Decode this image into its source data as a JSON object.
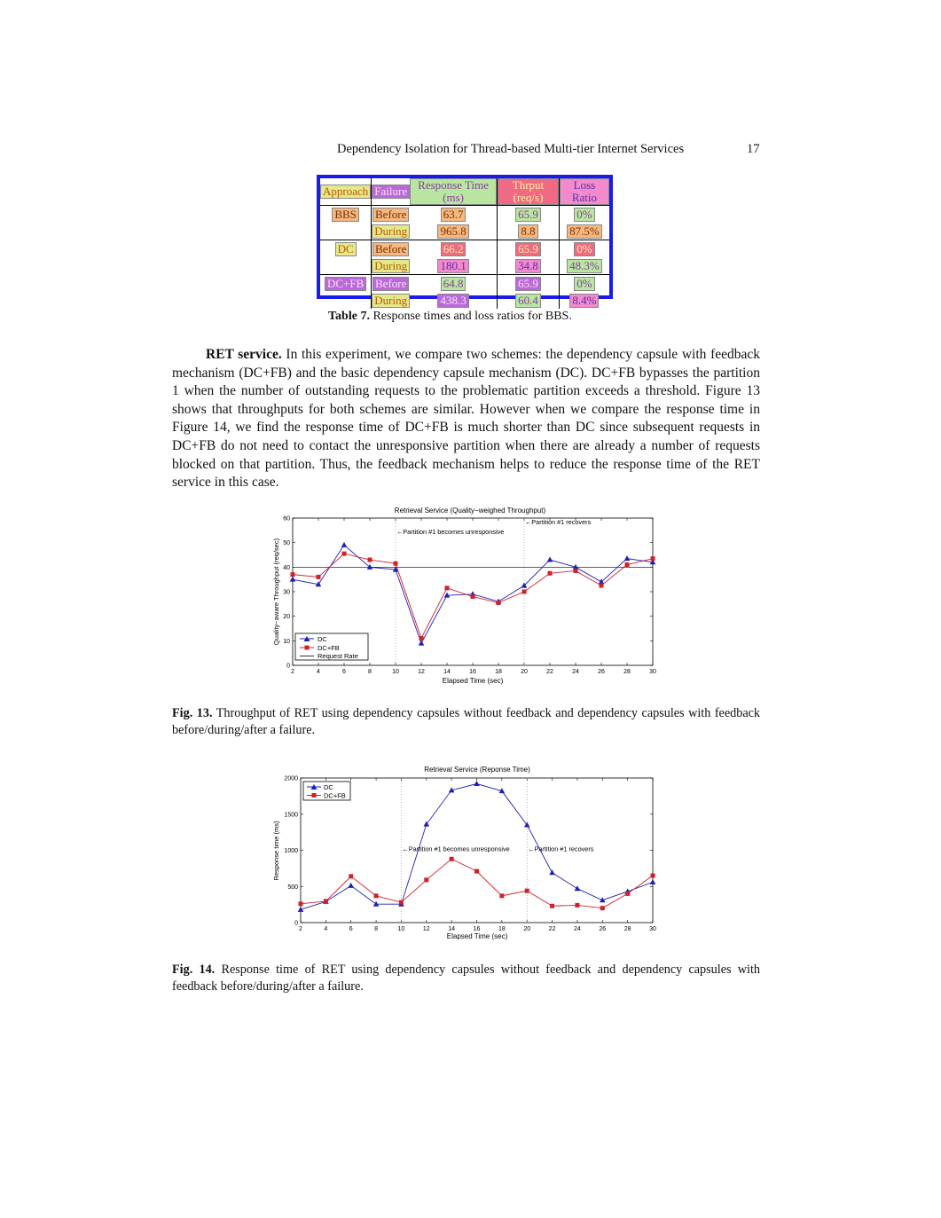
{
  "running_header": "Dependency Isolation for Thread-based Multi-tier Internet Services",
  "page_number": "17",
  "table7": {
    "headers": [
      "Approach",
      "Failure",
      "Response Time (ms)",
      "Thrput (req/s)",
      "Loss Ratio"
    ],
    "rows": [
      [
        "BBS",
        "Before",
        "63.7",
        "65.9",
        "0%"
      ],
      [
        "",
        "During",
        "965.8",
        "8.8",
        "87.5%"
      ],
      [
        "DC",
        "Before",
        "66.2",
        "65.9",
        "0%"
      ],
      [
        "",
        "During",
        "180.1",
        "34.8",
        "48.3%"
      ],
      [
        "DC+FB",
        "Before",
        "64.8",
        "65.9",
        "0%"
      ],
      [
        "",
        "During",
        "438.3",
        "60.4",
        "8.4%"
      ]
    ],
    "caption_label": "Table 7.",
    "caption_text": "Response times and loss ratios for BBS."
  },
  "body": {
    "lead": "RET service.",
    "text": "In this experiment, we compare two schemes: the dependency capsule with feedback mechanism (DC+FB) and the basic dependency capsule mechanism (DC). DC+FB bypasses the partition 1 when the number of outstanding requests to the problematic partition exceeds a threshold. Figure 13 shows that throughputs for both schemes are similar. However when we compare the response time in Figure 14, we find the response time of DC+FB is much shorter than DC since subsequent requests in DC+FB do not need to contact the unresponsive partition when there are already a number of requests blocked on that partition. Thus, the feedback mechanism helps to reduce the response time of the RET service in this case."
  },
  "fig13": {
    "caption_label": "Fig. 13.",
    "caption_text": "Throughput of RET using dependency capsules without feedback and dependency capsules with feedback before/during/after a failure."
  },
  "fig14": {
    "caption_label": "Fig. 14.",
    "caption_text": "Response time of RET using dependency capsules without feedback and dependency capsules with feedback before/during/after a failure."
  },
  "colors": {
    "dc": "#1f1fb4",
    "dcfb": "#d0202a",
    "table_border": "#1a1aee"
  },
  "chart_data": [
    {
      "type": "line",
      "title": "Retrieval Service (Quality−weighed Throughput)",
      "xlabel": "Elapsed Time (sec)",
      "ylabel": "Quality−aware Throughput (req/sec)",
      "xlim": [
        2,
        30
      ],
      "ylim": [
        0,
        60
      ],
      "xticks": [
        2,
        4,
        6,
        8,
        10,
        12,
        14,
        16,
        18,
        20,
        22,
        24,
        26,
        28,
        30
      ],
      "yticks": [
        0,
        10,
        20,
        30,
        40,
        50,
        60
      ],
      "x": [
        2,
        4,
        6,
        8,
        10,
        12,
        14,
        16,
        18,
        20,
        22,
        24,
        26,
        28,
        30
      ],
      "series": [
        {
          "name": "DC",
          "marker": "triangle",
          "values": [
            35,
            33,
            49,
            40,
            39,
            9,
            28.5,
            29,
            26,
            32.5,
            43,
            40,
            34,
            43.5,
            42
          ]
        },
        {
          "name": "DC+FB",
          "marker": "square",
          "values": [
            37,
            36,
            45.5,
            43,
            41.5,
            11,
            31.5,
            28,
            25.5,
            30,
            37.5,
            38.5,
            32.5,
            41,
            43.5
          ]
        }
      ],
      "reference_line": {
        "name": "Request Rate",
        "value": 40
      },
      "vlines": [
        10,
        20
      ],
      "annotations": [
        {
          "text": "←Partition #1 becomes unresponsive",
          "x": 10,
          "y": 53.5
        },
        {
          "text": "←Partition #1 recovers",
          "x": 20,
          "y": 57.5
        }
      ],
      "legend": "bottom-left"
    },
    {
      "type": "line",
      "title": "Retrieval Service (Reponse Time)",
      "xlabel": "Elapsed Time (sec)",
      "ylabel": "Response time (ms)",
      "xlim": [
        2,
        30
      ],
      "ylim": [
        0,
        2000
      ],
      "xticks": [
        2,
        4,
        6,
        8,
        10,
        12,
        14,
        16,
        18,
        20,
        22,
        24,
        26,
        28,
        30
      ],
      "yticks": [
        0,
        500,
        1000,
        1500,
        2000
      ],
      "x": [
        2,
        4,
        6,
        8,
        10,
        12,
        14,
        16,
        18,
        20,
        22,
        24,
        26,
        28,
        30
      ],
      "series": [
        {
          "name": "DC",
          "marker": "triangle",
          "values": [
            180,
            290,
            510,
            255,
            255,
            1360,
            1830,
            1920,
            1820,
            1350,
            690,
            470,
            310,
            430,
            560
          ]
        },
        {
          "name": "DC+FB",
          "marker": "square",
          "values": [
            260,
            295,
            640,
            370,
            280,
            590,
            880,
            710,
            370,
            440,
            230,
            240,
            200,
            400,
            650
          ]
        }
      ],
      "vlines": [
        10,
        20
      ],
      "annotations": [
        {
          "text": "←Partition #1 becomes unresponsive",
          "x": 10,
          "y": 990
        },
        {
          "text": "←Partition #1 recovers",
          "x": 20,
          "y": 990
        }
      ],
      "legend": "top-left"
    }
  ]
}
